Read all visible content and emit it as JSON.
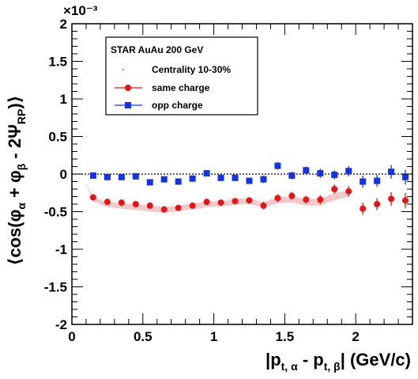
{
  "chart_data": {
    "type": "scatter",
    "title": "",
    "multiplier_label": "×10⁻³",
    "xlabel": "|pt,α - pt,β|  (GeV/c)",
    "ylabel": "⟨cos(φα + φβ - 2ΨRP)⟩",
    "xlim": [
      0,
      2.4
    ],
    "ylim": [
      -2,
      2
    ],
    "x_ticks": [
      0,
      0.5,
      1,
      1.5,
      2
    ],
    "y_ticks": [
      -2,
      -1.5,
      -1,
      -0.5,
      0,
      0.5,
      1,
      1.5,
      2
    ],
    "x_tick_labels": [
      "0",
      "0.5",
      "1",
      "1.5",
      "2"
    ],
    "y_tick_labels": [
      "-2",
      "-1.5",
      "-1",
      "-0.5",
      "0",
      "0.5",
      "1",
      "1.5",
      "2"
    ],
    "zero_line": "dotted",
    "legend": {
      "placement": "top-left",
      "header": "STAR  AuAu 200 GeV",
      "entries": [
        "Centrality 10-30%",
        "same charge",
        "opp charge"
      ]
    },
    "colors": {
      "same": "#ee1111",
      "opp": "#1133ee",
      "band": "#f4a0a0"
    },
    "series": [
      {
        "name": "same charge",
        "marker": "circle",
        "x": [
          0.15,
          0.25,
          0.35,
          0.45,
          0.55,
          0.65,
          0.75,
          0.85,
          0.95,
          1.05,
          1.15,
          1.25,
          1.35,
          1.45,
          1.55,
          1.65,
          1.75,
          1.85,
          1.95,
          2.05,
          2.15,
          2.25,
          2.35
        ],
        "y": [
          -0.31,
          -0.37,
          -0.38,
          -0.4,
          -0.42,
          -0.47,
          -0.45,
          -0.42,
          -0.37,
          -0.38,
          -0.36,
          -0.35,
          -0.42,
          -0.32,
          -0.29,
          -0.34,
          -0.34,
          -0.2,
          -0.23,
          -0.46,
          -0.4,
          -0.33,
          -0.35
        ],
        "err": [
          0.02,
          0.02,
          0.02,
          0.02,
          0.02,
          0.02,
          0.02,
          0.03,
          0.03,
          0.03,
          0.03,
          0.04,
          0.05,
          0.05,
          0.05,
          0.05,
          0.06,
          0.06,
          0.07,
          0.08,
          0.08,
          0.09,
          0.1
        ]
      },
      {
        "name": "opp charge",
        "marker": "square",
        "x": [
          0.15,
          0.25,
          0.35,
          0.45,
          0.55,
          0.65,
          0.75,
          0.85,
          0.95,
          1.05,
          1.15,
          1.25,
          1.35,
          1.45,
          1.55,
          1.65,
          1.75,
          1.85,
          1.95,
          2.05,
          2.15,
          2.25,
          2.35
        ],
        "y": [
          -0.02,
          -0.04,
          -0.04,
          -0.03,
          -0.11,
          -0.07,
          -0.1,
          -0.06,
          0.01,
          -0.05,
          -0.05,
          -0.09,
          -0.07,
          0.11,
          -0.02,
          0.05,
          0.01,
          -0.01,
          0.04,
          -0.1,
          -0.09,
          0.03,
          -0.04
        ],
        "err": [
          0.02,
          0.02,
          0.02,
          0.02,
          0.02,
          0.02,
          0.02,
          0.03,
          0.03,
          0.03,
          0.03,
          0.04,
          0.05,
          0.05,
          0.05,
          0.05,
          0.06,
          0.06,
          0.07,
          0.08,
          0.08,
          0.09,
          0.1
        ]
      }
    ],
    "band": {
      "x": [
        0.1,
        0.15,
        0.25,
        0.35,
        0.45,
        0.55,
        0.65,
        0.75,
        0.85,
        0.95,
        1.05,
        1.15,
        1.25,
        1.35,
        1.45,
        1.55,
        1.65,
        1.75,
        1.85,
        1.95
      ],
      "upper": [
        -0.12,
        -0.31,
        -0.37,
        -0.39,
        -0.4,
        -0.42,
        -0.44,
        -0.42,
        -0.39,
        -0.36,
        -0.36,
        -0.33,
        -0.32,
        -0.38,
        -0.3,
        -0.3,
        -0.33,
        -0.33,
        -0.25,
        -0.22
      ],
      "lower": [
        -0.14,
        -0.36,
        -0.44,
        -0.46,
        -0.48,
        -0.5,
        -0.52,
        -0.49,
        -0.47,
        -0.44,
        -0.43,
        -0.41,
        -0.4,
        -0.44,
        -0.39,
        -0.38,
        -0.42,
        -0.42,
        -0.35,
        -0.3
      ]
    }
  }
}
